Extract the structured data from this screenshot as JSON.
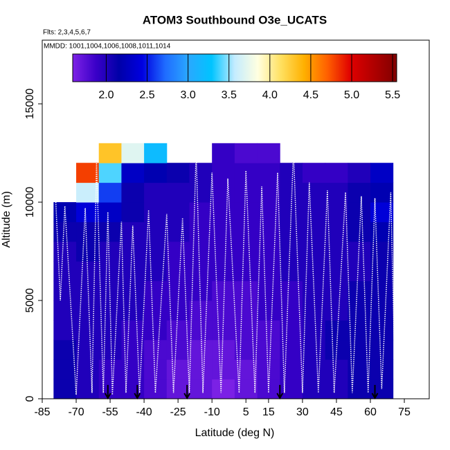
{
  "chart_data": {
    "type": "heatmap",
    "title": "ATOM3 Southbound O3e_UCATS",
    "subtitle": "Flts: 2,3,4,5,6,7",
    "annotation": "MMDD: 1001,1004,1006,1008,1011,1014",
    "xlabel": "Latitude (deg N)",
    "ylabel": "Altitude (m)",
    "xlim": [
      -85,
      86
    ],
    "ylim": [
      0,
      18240
    ],
    "xticks": [
      -85,
      -70,
      -55,
      -40,
      -25,
      -10,
      5,
      15,
      30,
      45,
      60,
      75
    ],
    "yticks": [
      0,
      5000,
      10000,
      15000
    ],
    "x_edges": [
      -80,
      -70,
      -60,
      -50,
      -40,
      -30,
      -20,
      -10,
      0,
      10,
      20,
      30,
      40,
      50,
      60,
      70
    ],
    "y_edges": [
      0,
      1000,
      2000,
      3000,
      4000,
      5000,
      6000,
      7000,
      8000,
      9000,
      10000,
      11000,
      12000,
      13000
    ],
    "z": [
      [
        2.1,
        2.0,
        1.9,
        1.9,
        1.8,
        1.7,
        1.7,
        1.6,
        1.7,
        1.8,
        1.9,
        2.0,
        2.0,
        2.1,
        2.1
      ],
      [
        2.1,
        2.0,
        1.9,
        1.9,
        1.8,
        1.7,
        1.7,
        1.7,
        1.7,
        1.8,
        1.9,
        2.0,
        2.0,
        2.1,
        2.1
      ],
      [
        2.1,
        2.0,
        2.0,
        1.9,
        1.8,
        1.8,
        1.7,
        1.7,
        1.8,
        1.8,
        1.9,
        2.0,
        2.1,
        2.1,
        2.1
      ],
      [
        2.0,
        2.0,
        2.0,
        1.9,
        1.9,
        1.8,
        1.8,
        1.8,
        1.8,
        1.8,
        1.9,
        2.0,
        2.1,
        2.1,
        2.1
      ],
      [
        2.0,
        2.0,
        2.0,
        2.0,
        1.9,
        1.9,
        1.8,
        1.8,
        1.8,
        1.9,
        1.9,
        2.0,
        2.0,
        2.1,
        2.1
      ],
      [
        2.0,
        2.0,
        2.0,
        2.0,
        1.9,
        1.9,
        1.9,
        1.8,
        1.8,
        1.9,
        1.9,
        2.0,
        2.0,
        2.1,
        2.1
      ],
      [
        2.0,
        2.0,
        2.0,
        2.0,
        2.0,
        1.9,
        1.9,
        1.9,
        1.9,
        1.9,
        2.0,
        2.0,
        2.0,
        2.0,
        2.1
      ],
      [
        2.0,
        2.1,
        2.0,
        2.0,
        2.0,
        1.9,
        1.9,
        1.9,
        1.9,
        1.9,
        2.0,
        2.0,
        2.0,
        2.0,
        2.1
      ],
      [
        2.1,
        2.1,
        2.1,
        2.0,
        2.0,
        2.0,
        1.9,
        1.9,
        1.9,
        1.9,
        2.0,
        2.0,
        2.0,
        2.1,
        2.2
      ],
      [
        2.2,
        2.4,
        2.3,
        2.1,
        2.0,
        2.0,
        1.9,
        1.9,
        1.9,
        1.9,
        2.0,
        2.0,
        2.0,
        2.1,
        2.4
      ],
      [
        null,
        3.6,
        2.6,
        2.1,
        2.0,
        2.0,
        2.0,
        1.9,
        1.9,
        1.9,
        2.0,
        2.0,
        2.0,
        2.1,
        2.2
      ],
      [
        null,
        4.8,
        3.4,
        2.3,
        2.2,
        2.1,
        2.0,
        1.9,
        1.9,
        1.9,
        2.0,
        1.9,
        1.9,
        2.0,
        2.3
      ],
      [
        null,
        null,
        4.3,
        3.7,
        3.2,
        null,
        null,
        1.9,
        1.8,
        1.8,
        null,
        null,
        null,
        null,
        null
      ]
    ],
    "colorbar_lim": [
      1.59,
      5.55
    ],
    "colorbar_ticks": [
      {
        "value": 2,
        "label": "2.0"
      },
      2.5,
      {
        "value": 3,
        "label": "3.0"
      },
      3.5,
      {
        "value": 4,
        "label": "4.0"
      },
      4.5,
      {
        "value": 5,
        "label": "5.0"
      },
      5.5
    ],
    "colormap": [
      "#7d22e6",
      "#3a00c8",
      "#0000a8",
      "#0000e0",
      "#1f6cff",
      "#2aa8ff",
      "#00c4ff",
      "#c4ecff",
      "#ffffe0",
      "#ffe060",
      "#ffb000",
      "#ff6000",
      "#e00000",
      "#b00000",
      "#800000"
    ],
    "track": {
      "color": "#ffffff",
      "x": [
        -79,
        -77,
        -75,
        -70,
        -66,
        -63,
        -61,
        -58,
        -56,
        -54,
        -50,
        -48,
        -45,
        -42,
        -38,
        -35,
        -30,
        -27,
        -23,
        -20,
        -17,
        -14,
        -10,
        -6,
        -3,
        2,
        5,
        9,
        12,
        15,
        19,
        22,
        26,
        30,
        33,
        37,
        41,
        44,
        49,
        52,
        56,
        59,
        62,
        65,
        69,
        71
      ],
      "y": [
        10000,
        5000,
        9800,
        200,
        9700,
        300,
        12000,
        300,
        9500,
        200,
        9000,
        300,
        8800,
        300,
        9600,
        300,
        9400,
        300,
        9200,
        300,
        12600,
        300,
        11500,
        300,
        11200,
        300,
        11600,
        300,
        10800,
        300,
        11500,
        300,
        12600,
        300,
        11000,
        300,
        10600,
        300,
        10500,
        300,
        10300,
        300,
        10200,
        500,
        10500,
        400
      ]
    },
    "arrows_x": [
      -56,
      -43,
      -21,
      20,
      62
    ]
  }
}
